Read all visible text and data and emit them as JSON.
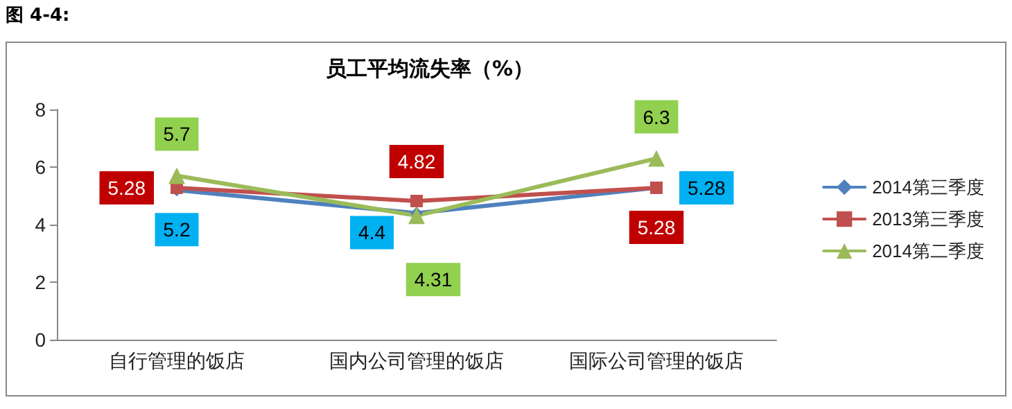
{
  "chart_data": {
    "type": "line",
    "title": "员工平均流失率（%）",
    "annotations": [
      "图 4-4:"
    ],
    "categories": [
      "自行管理的饭店",
      "国内公司管理的饭店",
      "国际公司管理的饭店"
    ],
    "series": [
      {
        "name": "2014第三季度",
        "color": "#4f81bd",
        "marker": "diamond",
        "values": [
          5.2,
          4.4,
          5.28
        ]
      },
      {
        "name": "2013第三季度",
        "color": "#c0504d",
        "marker": "square",
        "values": [
          5.28,
          4.82,
          5.28
        ]
      },
      {
        "name": "2014第二季度",
        "color": "#9bbb59",
        "marker": "triangle",
        "values": [
          5.7,
          4.31,
          6.3
        ]
      }
    ],
    "ylim": [
      0,
      8
    ],
    "yticks": [
      0,
      2,
      4,
      6,
      8
    ],
    "grid": false,
    "legend": "right",
    "data_labels": true,
    "line_style": "solid"
  }
}
